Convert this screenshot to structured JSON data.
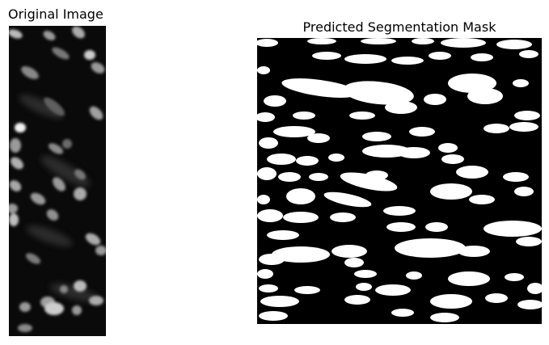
{
  "figure": {
    "left_panel": {
      "title": "Original Image",
      "background": "#0a0a0a",
      "content": "fluorescence-nuclei"
    },
    "right_panel": {
      "title": "Predicted Segmentation Mask",
      "background": "#000000",
      "foreground": "#ffffff",
      "content": "binary-mask"
    }
  }
}
